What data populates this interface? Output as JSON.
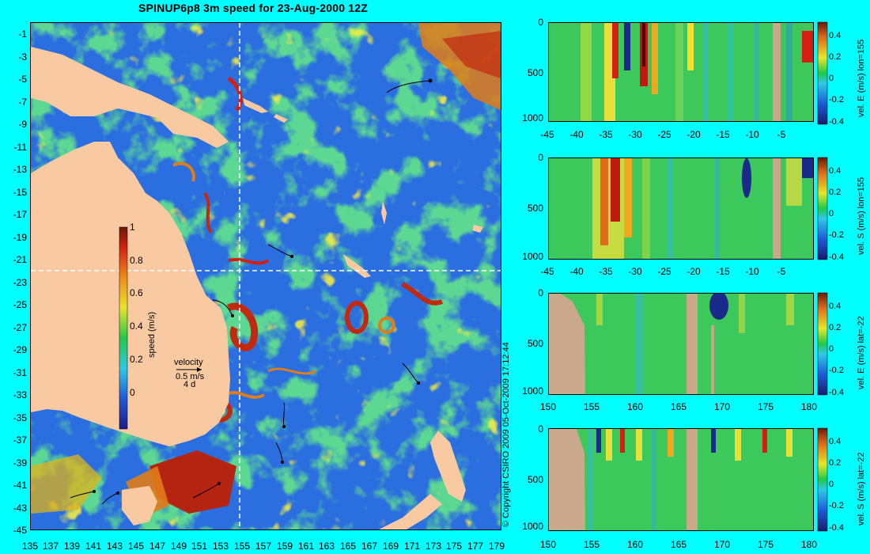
{
  "title": "SPINUP6p8 3m speed for 23-Aug-2000 12Z",
  "map": {
    "y_ticks": [
      "-1",
      "-3",
      "-5",
      "-7",
      "-9",
      "-11",
      "-13",
      "-15",
      "-17",
      "-19",
      "-21",
      "-23",
      "-25",
      "-27",
      "-29",
      "-31",
      "-33",
      "-35",
      "-37",
      "-39",
      "-41",
      "-43",
      "-45"
    ],
    "x_ticks": [
      "135",
      "137",
      "139",
      "141",
      "143",
      "145",
      "147",
      "149",
      "151",
      "153",
      "155",
      "157",
      "159",
      "161",
      "163",
      "165",
      "167",
      "169",
      "171",
      "173",
      "175",
      "177",
      "179"
    ],
    "colorbar": {
      "ticks": [
        "1",
        "0.8",
        "0.6",
        "0.4",
        "0.2",
        "0"
      ],
      "label": "speed (m/s)"
    },
    "velocity_key": {
      "label": "velocity",
      "scale": "0.5 m/s",
      "duration": "4 d"
    },
    "crosshair": {
      "lon": 155,
      "lat": -22
    },
    "colors": {
      "land": "#f9c9a2",
      "low": "#1a55d8",
      "mid": "#22c84a",
      "high": "#d42010",
      "background": "#00ffff"
    }
  },
  "copyright": "© Copyright CSIRO 2009   05-Oct-2009 17:12:44",
  "sections": [
    {
      "y_ticks": [
        "0",
        "500",
        "1000"
      ],
      "x_ticks": [
        "-45",
        "-40",
        "-35",
        "-30",
        "-25",
        "-20",
        "-15",
        "-10",
        "-5"
      ],
      "cbar_ticks": [
        "0.4",
        "0.2",
        "0",
        "-0.2",
        "-0.4"
      ],
      "label": "vel. E (m/s) lon=155"
    },
    {
      "y_ticks": [
        "0",
        "500",
        "1000"
      ],
      "x_ticks": [
        "-45",
        "-40",
        "-35",
        "-30",
        "-25",
        "-20",
        "-15",
        "-10",
        "-5"
      ],
      "cbar_ticks": [
        "0.4",
        "0.2",
        "0",
        "-0.2",
        "-0.4"
      ],
      "label": "vel. S (m/s) lon=155"
    },
    {
      "y_ticks": [
        "0",
        "500",
        "1000"
      ],
      "x_ticks": [
        "150",
        "155",
        "160",
        "165",
        "170",
        "175",
        "180"
      ],
      "cbar_ticks": [
        "0.4",
        "0.2",
        "0",
        "-0.2",
        "-0.4"
      ],
      "label": "vel. E (m/s) lat=-22"
    },
    {
      "y_ticks": [
        "0",
        "500",
        "1000"
      ],
      "x_ticks": [
        "150",
        "155",
        "160",
        "165",
        "170",
        "175",
        "180"
      ],
      "cbar_ticks": [
        "0.4",
        "0.2",
        "0",
        "-0.2",
        "-0.4"
      ],
      "label": "vel. S (m/s) lat=-22"
    }
  ]
}
